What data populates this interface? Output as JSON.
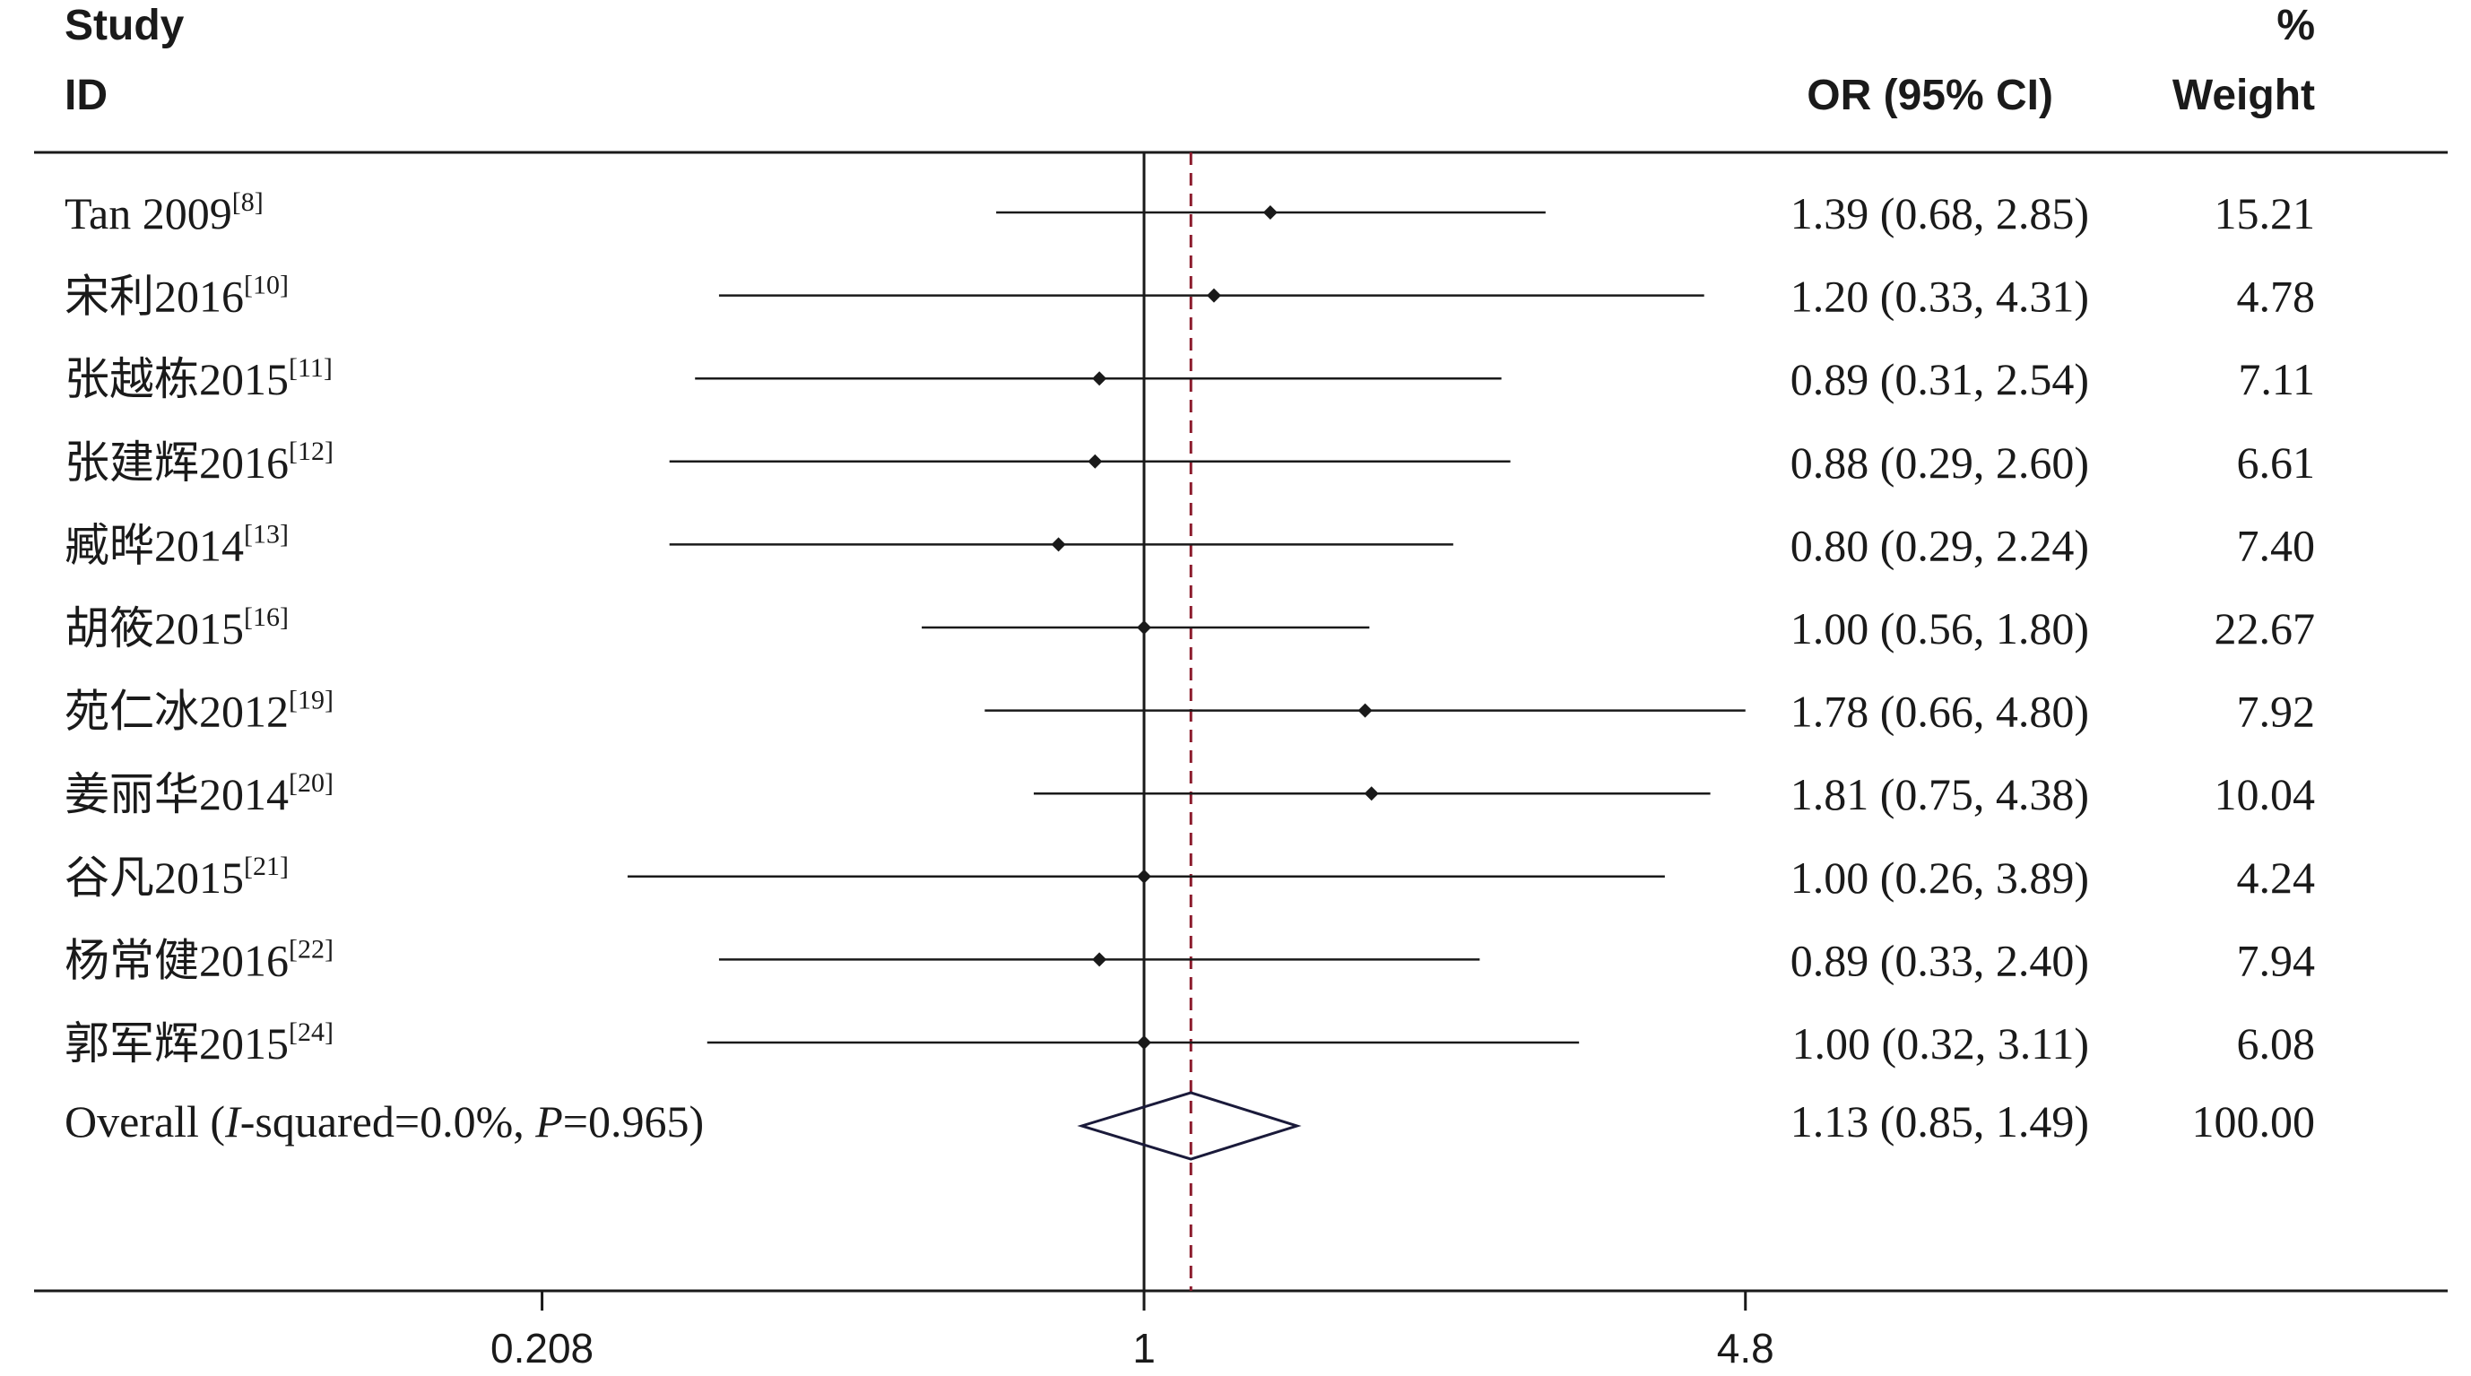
{
  "header": {
    "study_line1": "Study",
    "study_line2": "ID",
    "or_label": "OR (95% CI)",
    "weight_line1": "%",
    "weight_line2": "Weight"
  },
  "chart_data": {
    "type": "forest",
    "x_scale": "log",
    "null_line": 1,
    "overall_line": 1.13,
    "ticks": [
      {
        "value": 0.208,
        "label": "0.208"
      },
      {
        "value": 1,
        "label": "1"
      },
      {
        "value": 4.8,
        "label": "4.8"
      }
    ],
    "studies": [
      {
        "name": "Tan 2009",
        "ref": "[8]",
        "or": 1.39,
        "lo": 0.68,
        "hi": 2.85,
        "or_text": "1.39 (0.68, 2.85)",
        "weight": "15.21"
      },
      {
        "name": "宋利2016",
        "ref": "[10]",
        "or": 1.2,
        "lo": 0.33,
        "hi": 4.31,
        "or_text": "1.20 (0.33, 4.31)",
        "weight": "4.78"
      },
      {
        "name": "张越栋2015",
        "ref": "[11]",
        "or": 0.89,
        "lo": 0.31,
        "hi": 2.54,
        "or_text": "0.89 (0.31, 2.54)",
        "weight": "7.11"
      },
      {
        "name": "张建辉2016",
        "ref": "[12]",
        "or": 0.88,
        "lo": 0.29,
        "hi": 2.6,
        "or_text": "0.88 (0.29, 2.60)",
        "weight": "6.61"
      },
      {
        "name": "臧晔2014",
        "ref": "[13]",
        "or": 0.8,
        "lo": 0.29,
        "hi": 2.24,
        "or_text": "0.80 (0.29, 2.24)",
        "weight": "7.40"
      },
      {
        "name": "胡筱2015",
        "ref": "[16]",
        "or": 1.0,
        "lo": 0.56,
        "hi": 1.8,
        "or_text": "1.00 (0.56, 1.80)",
        "weight": "22.67"
      },
      {
        "name": "苑仁冰2012",
        "ref": "[19]",
        "or": 1.78,
        "lo": 0.66,
        "hi": 4.8,
        "or_text": "1.78 (0.66, 4.80)",
        "weight": "7.92"
      },
      {
        "name": "姜丽华2014",
        "ref": "[20]",
        "or": 1.81,
        "lo": 0.75,
        "hi": 4.38,
        "or_text": "1.81 (0.75, 4.38)",
        "weight": "10.04"
      },
      {
        "name": "谷凡2015",
        "ref": "[21]",
        "or": 1.0,
        "lo": 0.26,
        "hi": 3.89,
        "or_text": "1.00 (0.26, 3.89)",
        "weight": "4.24"
      },
      {
        "name": "杨常健2016",
        "ref": "[22]",
        "or": 0.89,
        "lo": 0.33,
        "hi": 2.4,
        "or_text": "0.89 (0.33, 2.40)",
        "weight": "7.94"
      },
      {
        "name": "郭军辉2015",
        "ref": "[24]",
        "or": 1.0,
        "lo": 0.32,
        "hi": 3.11,
        "or_text": "1.00 (0.32, 3.11)",
        "weight": "6.08"
      }
    ],
    "overall": {
      "label_prefix": "Overall  (",
      "i_letter": "I",
      "label_mid": "-squared=0.0%, ",
      "p_letter": "P",
      "label_end": "=0.965)",
      "or": 1.13,
      "lo": 0.85,
      "hi": 1.49,
      "or_text": "1.13 (0.85, 1.49)",
      "weight": "100.00"
    },
    "colors": {
      "ink": "#1a1a1a",
      "overall_line": "#8b1a2b",
      "diamond": "#1a1a3a"
    }
  }
}
